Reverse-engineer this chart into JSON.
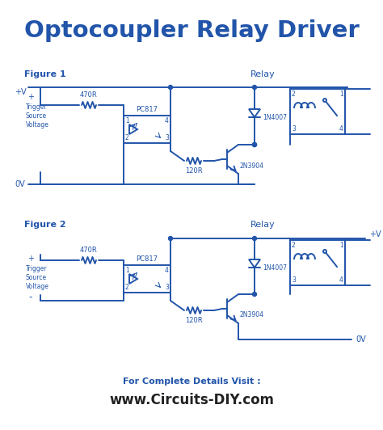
{
  "title": "Optocoupler Relay Driver",
  "title_color": "#2255aa",
  "title_fontsize": 21,
  "bg_color": "#ffffff",
  "cc": "#2255aa",
  "fig1_label": "Figure 1",
  "fig2_label": "Figure 2",
  "relay_label": "Relay",
  "pc817_label": "PC817",
  "r470_label": "470R",
  "r120_label": "120R",
  "diode_label": "1N4007",
  "transistor_label": "2N3904",
  "vplus_label": "+V",
  "vzero_label": "0V",
  "vplus2_label": "+V",
  "vzero2_label": "0V",
  "trigger_label": "Trigger\nSource\nVoltage",
  "trigger2_label": "Trigger\nSource\nVoltage",
  "plus_label": "+",
  "minus_label": "-",
  "footer1": "For Complete Details Visit :",
  "footer2": "www.Circuits-DIY.com",
  "footer_color1": "#2255aa",
  "footer_color2": "#222222"
}
